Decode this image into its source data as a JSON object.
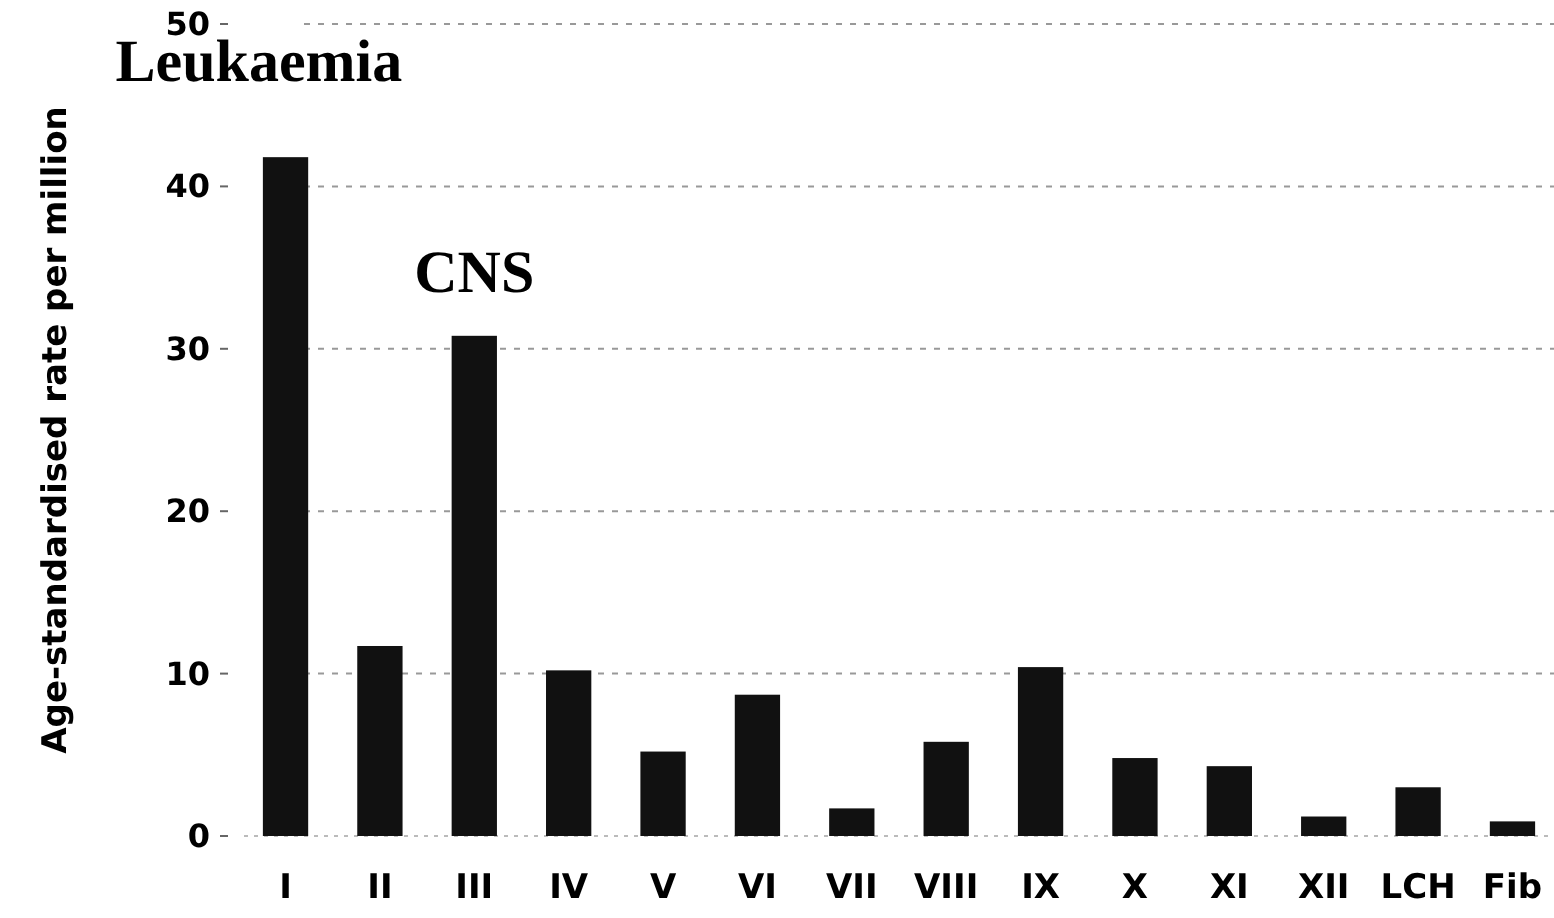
{
  "chart_data": {
    "type": "bar",
    "ylabel": "Age-standardised rate per million",
    "categories": [
      "I",
      "II",
      "III",
      "IV",
      "V",
      "VI",
      "VII",
      "VIII",
      "IX",
      "X",
      "XI",
      "XII",
      "LCH",
      "Fib"
    ],
    "values": [
      41.8,
      11.7,
      30.8,
      10.2,
      5.2,
      8.7,
      1.7,
      5.8,
      10.4,
      4.8,
      4.3,
      1.2,
      3.0,
      0.9
    ],
    "color": "#111111",
    "ylim": [
      0,
      50
    ],
    "yticks": [
      0,
      10,
      20,
      30,
      40,
      50
    ],
    "grid": "y",
    "annotations": [
      {
        "text": "Leukaemia",
        "x": "I",
        "y": 41.8
      },
      {
        "text": "CNS",
        "x": "III",
        "y": 30.8
      }
    ]
  }
}
